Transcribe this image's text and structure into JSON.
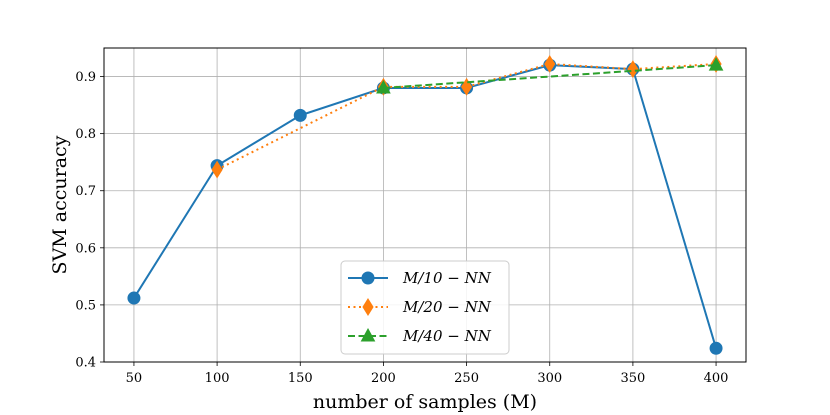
{
  "chart_data": {
    "type": "line",
    "title": "",
    "xlabel": "number of samples (M)",
    "ylabel": "SVM accuracy",
    "x": [
      50,
      100,
      150,
      200,
      250,
      300,
      350,
      400
    ],
    "xticks": [
      50,
      100,
      150,
      200,
      250,
      300,
      350,
      400
    ],
    "yticks": [
      0.4,
      0.5,
      0.6,
      0.7,
      0.8,
      0.9
    ],
    "xlim": [
      32,
      418
    ],
    "ylim": [
      0.4,
      0.95
    ],
    "grid": true,
    "legend_position": "bottom-center",
    "series": [
      {
        "name": "M/10 − NN",
        "color": "#1f77b4",
        "marker": "circle",
        "line_style": "solid",
        "x": [
          50,
          100,
          150,
          200,
          250,
          300,
          350,
          400
        ],
        "values": [
          0.512,
          0.744,
          0.832,
          0.88,
          0.88,
          0.92,
          0.913,
          0.424
        ]
      },
      {
        "name": "M/20 − NN",
        "color": "#ff7f0e",
        "marker": "diamond",
        "line_style": "dotted",
        "x": [
          100,
          200,
          250,
          300,
          350,
          400
        ],
        "values": [
          0.737,
          0.882,
          0.882,
          0.922,
          0.913,
          0.922
        ]
      },
      {
        "name": "M/40 − NN",
        "color": "#2ca02c",
        "marker": "triangle",
        "line_style": "dashed",
        "x": [
          200,
          400
        ],
        "values": [
          0.88,
          0.92
        ]
      }
    ]
  }
}
